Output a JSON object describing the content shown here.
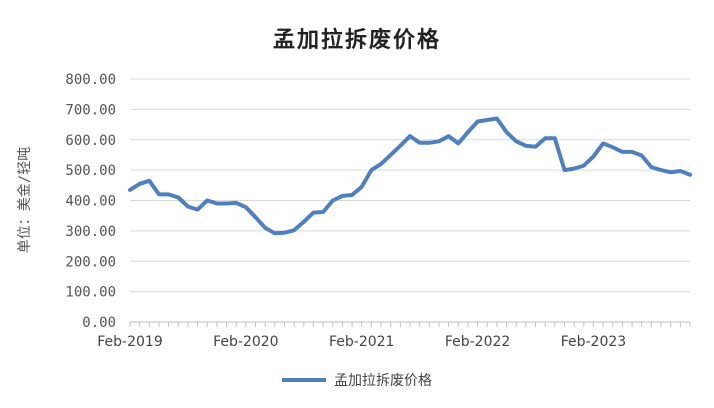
{
  "chart_data": {
    "type": "line",
    "title": "孟加拉拆废价格",
    "xlabel": "",
    "ylabel": "单位：美金/轻吨",
    "ylim": [
      0,
      800
    ],
    "ytick_labels": [
      "0.00",
      "100.00",
      "200.00",
      "300.00",
      "400.00",
      "500.00",
      "600.00",
      "700.00",
      "800.00"
    ],
    "xtick_labels": [
      "Feb-2019",
      "Feb-2020",
      "Feb-2021",
      "Feb-2022",
      "Feb-2023"
    ],
    "grid": true,
    "legend_position": "bottom",
    "color": "#4f7fbf",
    "series": [
      {
        "name": "孟加拉拆废价格",
        "x": [
          "2019-02",
          "2019-03",
          "2019-04",
          "2019-05",
          "2019-06",
          "2019-07",
          "2019-08",
          "2019-09",
          "2019-10",
          "2019-11",
          "2019-12",
          "2020-01",
          "2020-02",
          "2020-03",
          "2020-04",
          "2020-05",
          "2020-06",
          "2020-07",
          "2020-08",
          "2020-09",
          "2020-10",
          "2020-11",
          "2020-12",
          "2021-01",
          "2021-02",
          "2021-03",
          "2021-04",
          "2021-05",
          "2021-06",
          "2021-07",
          "2021-08",
          "2021-09",
          "2021-10",
          "2021-11",
          "2021-12",
          "2022-01",
          "2022-02",
          "2022-03",
          "2022-04",
          "2022-05",
          "2022-06",
          "2022-07",
          "2022-08",
          "2022-09",
          "2022-10",
          "2022-11",
          "2022-12",
          "2023-01",
          "2023-02",
          "2023-03",
          "2023-04",
          "2023-05",
          "2023-06",
          "2023-07",
          "2023-08",
          "2023-09",
          "2023-10",
          "2023-11",
          "2023-12"
        ],
        "values": [
          435,
          455,
          465,
          420,
          420,
          410,
          380,
          370,
          400,
          390,
          390,
          392,
          378,
          345,
          310,
          292,
          294,
          302,
          330,
          360,
          362,
          400,
          415,
          418,
          445,
          500,
          520,
          550,
          580,
          612,
          590,
          590,
          595,
          612,
          588,
          625,
          660,
          665,
          670,
          625,
          595,
          580,
          577,
          605,
          605,
          500,
          505,
          515,
          545,
          588,
          575,
          560,
          560,
          548,
          510,
          500,
          493,
          497,
          485
        ]
      }
    ]
  }
}
